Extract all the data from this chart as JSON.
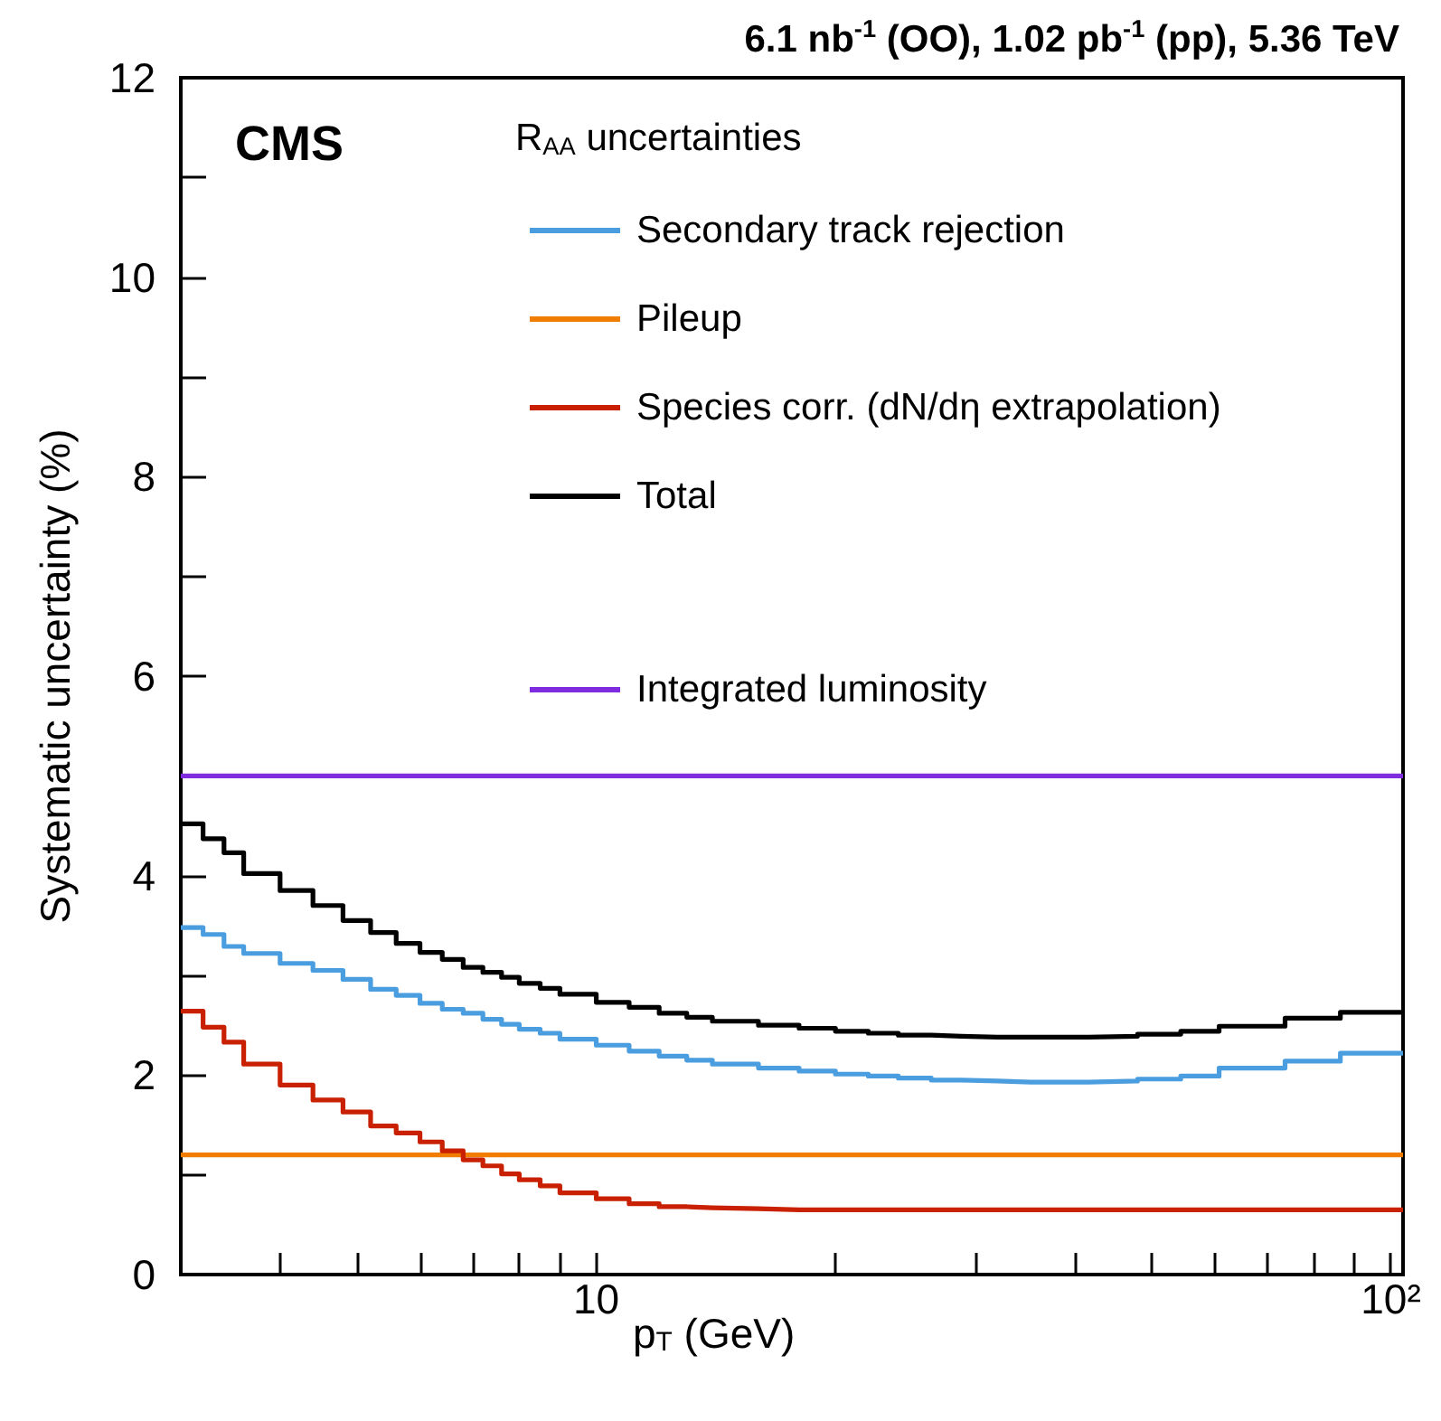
{
  "chart_data": {
    "type": "histogram",
    "title": "6.1 nb$^{-1}$ (OO), 1.02 pb$^{-1}$ (pp), 5.36 TeV",
    "xlabel": "p$_{T}$ (GeV)",
    "ylabel": "Systematic uncertainty (%)",
    "legend_title": "R$_{AA}$ uncertainties",
    "annotations": [
      "CMS"
    ],
    "bins": [
      3.0,
      3.2,
      3.4,
      3.6,
      4.0,
      4.4,
      4.8,
      5.2,
      5.6,
      6.0,
      6.4,
      6.8,
      7.2,
      7.6,
      8.0,
      8.5,
      9.0,
      10,
      11,
      12,
      13,
      14,
      16,
      18,
      20,
      22,
      24,
      26.4,
      28.8,
      32,
      35.2,
      38.4,
      41.6,
      48,
      54.4,
      60.8,
      73.6,
      86.4,
      103.6
    ],
    "series": [
      {
        "name": "Secondary track rejection",
        "color": "#4a9ee0",
        "values": [
          3.48,
          3.41,
          3.29,
          3.22,
          3.12,
          3.05,
          2.96,
          2.86,
          2.8,
          2.72,
          2.66,
          2.62,
          2.56,
          2.51,
          2.46,
          2.42,
          2.36,
          2.3,
          2.24,
          2.19,
          2.15,
          2.11,
          2.07,
          2.04,
          2.01,
          1.99,
          1.97,
          1.95,
          1.94,
          1.93,
          1.93,
          1.93,
          1.94,
          1.96,
          1.99,
          2.07,
          2.14,
          2.22
        ]
      },
      {
        "name": "Pileup",
        "color": "#f07c00",
        "values": [
          1.2,
          1.2,
          1.2,
          1.2,
          1.2,
          1.2,
          1.2,
          1.2,
          1.2,
          1.2,
          1.2,
          1.2,
          1.2,
          1.2,
          1.2,
          1.2,
          1.2,
          1.2,
          1.2,
          1.2,
          1.2,
          1.2,
          1.2,
          1.2,
          1.2,
          1.2,
          1.2,
          1.2,
          1.2,
          1.2,
          1.2,
          1.2,
          1.2,
          1.2,
          1.2,
          1.2,
          1.2,
          1.2
        ]
      },
      {
        "name": "Species corr. (dN/dη extrapolation)",
        "color": "#c82000",
        "values": [
          2.64,
          2.48,
          2.33,
          2.11,
          1.9,
          1.75,
          1.63,
          1.49,
          1.42,
          1.33,
          1.24,
          1.15,
          1.09,
          1.01,
          0.95,
          0.89,
          0.82,
          0.76,
          0.71,
          0.68,
          0.67,
          0.66,
          0.65,
          0.65,
          0.65,
          0.65,
          0.65,
          0.65,
          0.65,
          0.65,
          0.65,
          0.65,
          0.65,
          0.65,
          0.65,
          0.65,
          0.65,
          0.65
        ]
      },
      {
        "name": "Total",
        "color": "#000000",
        "values": [
          4.52,
          4.37,
          4.23,
          4.02,
          3.85,
          3.7,
          3.55,
          3.43,
          3.32,
          3.23,
          3.16,
          3.08,
          3.03,
          2.98,
          2.92,
          2.87,
          2.81,
          2.73,
          2.68,
          2.62,
          2.58,
          2.54,
          2.5,
          2.47,
          2.44,
          2.42,
          2.4,
          2.39,
          2.38,
          2.38,
          2.38,
          2.38,
          2.39,
          2.41,
          2.44,
          2.49,
          2.57,
          2.63
        ]
      },
      {
        "name": "Integrated luminosity",
        "color": "#7f2be0",
        "values": [
          5,
          5,
          5,
          5,
          5,
          5,
          5,
          5,
          5,
          5,
          5,
          5,
          5,
          5,
          5,
          5,
          5,
          5,
          5,
          5,
          5,
          5,
          5,
          5,
          5,
          5,
          5,
          5,
          5,
          5,
          5,
          5,
          5,
          5,
          5,
          5,
          5,
          5
        ]
      }
    ],
    "xlim": [
      3.0,
      103.6
    ],
    "ylim": [
      0,
      12
    ],
    "log": "x",
    "xticks": [
      {
        "value": 4,
        "label": null
      },
      {
        "value": 5,
        "label": null
      },
      {
        "value": 6,
        "label": null
      },
      {
        "value": 7,
        "label": null
      },
      {
        "value": 8,
        "label": null
      },
      {
        "value": 9,
        "label": null
      },
      10,
      {
        "value": 20,
        "label": null
      },
      {
        "value": 30,
        "label": null
      },
      {
        "value": 40,
        "label": null
      },
      {
        "value": 50,
        "label": null
      },
      {
        "value": 60,
        "label": null
      },
      {
        "value": 70,
        "label": null
      },
      {
        "value": 80,
        "label": null
      },
      {
        "value": 90,
        "label": null
      },
      {
        "value": 100,
        "label": "10²"
      }
    ],
    "yticks": [
      0,
      {
        "value": 1,
        "label": null
      },
      2,
      {
        "value": 3,
        "label": null
      },
      4,
      {
        "value": 5,
        "label": null
      },
      6,
      {
        "value": 7,
        "label": null
      },
      8,
      {
        "value": 9,
        "label": null
      },
      10,
      {
        "value": 11,
        "label": null
      },
      12
    ],
    "legend": "top right"
  }
}
